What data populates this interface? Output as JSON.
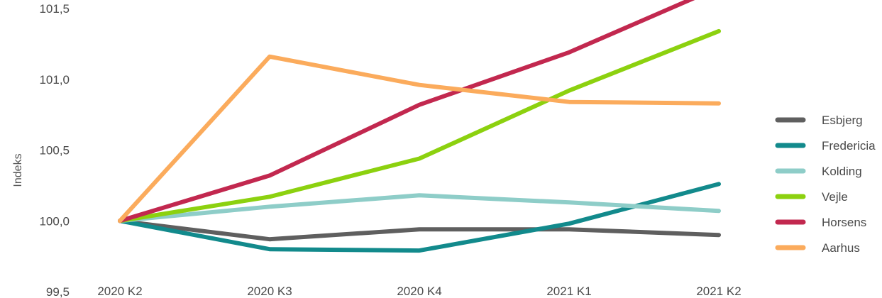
{
  "chart_data": {
    "type": "line",
    "ylabel": "Indeks",
    "categories": [
      "2020 K2",
      "2020 K3",
      "2020 K4",
      "2021 K1",
      "2021 K2"
    ],
    "ylim": [
      99.5,
      101.5
    ],
    "yticks": [
      "99,5",
      "100,0",
      "100,5",
      "101,0",
      "101,5"
    ],
    "ytick_values": [
      99.5,
      100.0,
      100.5,
      101.0,
      101.5
    ],
    "grid": false,
    "legend_position": "right",
    "series": [
      {
        "name": "Esbjerg",
        "color": "#5f5f5f",
        "values": [
          100.0,
          99.87,
          99.94,
          99.94,
          99.9
        ]
      },
      {
        "name": "Fredericia",
        "color": "#128a8c",
        "values": [
          100.0,
          99.8,
          99.79,
          99.98,
          100.26
        ]
      },
      {
        "name": "Kolding",
        "color": "#8ecdc8",
        "values": [
          100.0,
          100.1,
          100.18,
          100.13,
          100.07
        ]
      },
      {
        "name": "Vejle",
        "color": "#8cd10f",
        "values": [
          100.0,
          100.17,
          100.44,
          100.92,
          101.34
        ]
      },
      {
        "name": "Horsens",
        "color": "#c2284f",
        "values": [
          100.0,
          100.32,
          100.82,
          101.19,
          101.65
        ]
      },
      {
        "name": "Aarhus",
        "color": "#fbab5c",
        "values": [
          100.0,
          101.16,
          100.96,
          100.84,
          100.83
        ]
      }
    ]
  }
}
